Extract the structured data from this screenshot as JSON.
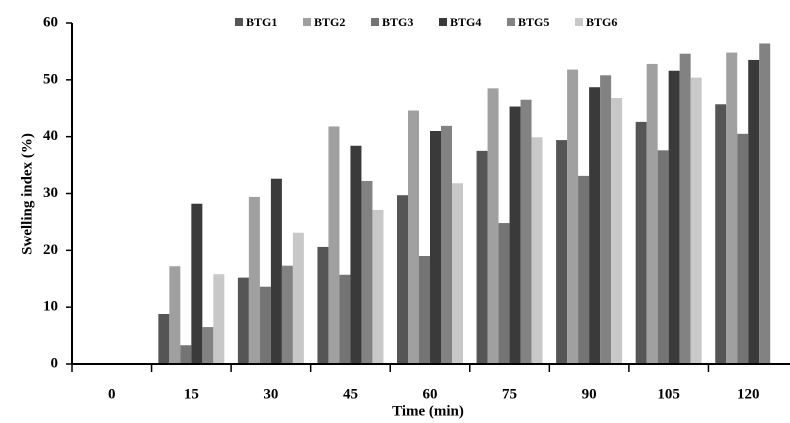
{
  "chart_data": {
    "type": "bar",
    "x_label": "Time (min)",
    "y_label": "Swelling index (%)",
    "categories": [
      "0",
      "15",
      "30",
      "45",
      "60",
      "75",
      "90",
      "105",
      "120"
    ],
    "series": [
      {
        "name": "BTG1",
        "color": "#555555",
        "values": [
          0,
          8.8,
          15.2,
          20.6,
          29.7,
          37.5,
          39.4,
          42.6,
          45.7
        ]
      },
      {
        "name": "BTG2",
        "color": "#a0a0a0",
        "values": [
          0,
          17.2,
          29.4,
          41.8,
          44.6,
          48.5,
          51.8,
          52.8,
          54.8
        ]
      },
      {
        "name": "BTG3",
        "color": "#747474",
        "values": [
          0,
          3.3,
          13.6,
          15.7,
          19.0,
          24.8,
          33.1,
          37.6,
          40.5
        ]
      },
      {
        "name": "BTG4",
        "color": "#3a3a3a",
        "values": [
          0,
          28.2,
          32.6,
          38.4,
          41.0,
          45.3,
          48.7,
          51.6,
          53.5
        ]
      },
      {
        "name": "BTG5",
        "color": "#828282",
        "values": [
          0,
          6.5,
          17.3,
          32.2,
          41.9,
          46.5,
          50.8,
          54.6,
          56.4
        ]
      },
      {
        "name": "BTG6",
        "color": "#c8c8c8",
        "values": [
          0,
          15.8,
          23.1,
          27.1,
          31.8,
          39.9,
          46.8,
          50.4,
          null
        ]
      }
    ],
    "ylim": [
      0,
      60
    ],
    "yticks": [
      0,
      10,
      20,
      30,
      40,
      50,
      60
    ],
    "grid": false,
    "legend": "top"
  }
}
